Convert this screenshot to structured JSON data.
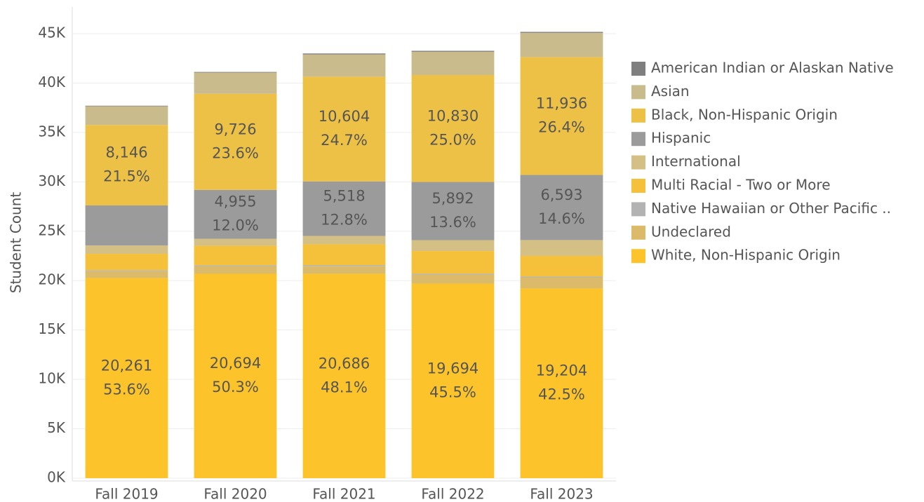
{
  "chart_data": {
    "type": "stacked_bar",
    "y_label": "Student Count",
    "categories": [
      "Fall 2019",
      "Fall 2020",
      "Fall 2021",
      "Fall 2022",
      "Fall 2023"
    ],
    "ylim": [
      0,
      47700
    ],
    "yticks": [
      {
        "value": 0,
        "label": "0K"
      },
      {
        "value": 5000,
        "label": "5K"
      },
      {
        "value": 10000,
        "label": "10K"
      },
      {
        "value": 15000,
        "label": "15K"
      },
      {
        "value": 20000,
        "label": "20K"
      },
      {
        "value": 25000,
        "label": "25K"
      },
      {
        "value": 30000,
        "label": "30K"
      },
      {
        "value": 35000,
        "label": "35K"
      },
      {
        "value": 40000,
        "label": "40K"
      },
      {
        "value": 45000,
        "label": "45K"
      }
    ],
    "grid": true,
    "legend": "right",
    "series": [
      {
        "name": "American Indian or Alaskan Native",
        "color": "#7f7f7f",
        "values": [
          50,
          60,
          100,
          100,
          100
        ]
      },
      {
        "name": "Asian",
        "color": "#c9bb8c",
        "values": [
          1900,
          2150,
          2250,
          2350,
          2450
        ]
      },
      {
        "name": "Black, Non-Hispanic Origin",
        "color": "#edc145",
        "values": [
          8146,
          9726,
          10604,
          10830,
          11936
        ],
        "value_labels": [
          "8,146",
          "9,726",
          "10,604",
          "10,830",
          "11,936"
        ],
        "percent_labels": [
          "21.5%",
          "23.6%",
          "24.7%",
          "25.0%",
          "26.4%"
        ]
      },
      {
        "name": "Hispanic",
        "color": "#9b9b9b",
        "values": [
          4050,
          4955,
          5518,
          5892,
          6593
        ],
        "value_labels": [
          null,
          "4,955",
          "5,518",
          "5,892",
          "6,593"
        ],
        "percent_labels": [
          null,
          "12.0%",
          "12.8%",
          "13.6%",
          "14.6%"
        ]
      },
      {
        "name": "International",
        "color": "#d4c084",
        "values": [
          850,
          710,
          850,
          1100,
          1600
        ]
      },
      {
        "name": "Multi Racial - Two or More",
        "color": "#f5c13a",
        "values": [
          1650,
          1960,
          2100,
          2300,
          2100
        ]
      },
      {
        "name": "Native Hawaiian or Other Pacific ..",
        "color": "#b3b3b3",
        "values": [
          100,
          90,
          90,
          100,
          100
        ]
      },
      {
        "name": "Undeclared",
        "color": "#dbbb6a",
        "values": [
          700,
          780,
          800,
          900,
          1100
        ]
      },
      {
        "name": "White, Non-Hispanic Origin",
        "color": "#fcc42a",
        "values": [
          20261,
          20694,
          20686,
          19694,
          19204
        ],
        "value_labels": [
          "20,261",
          "20,694",
          "20,686",
          "19,694",
          "19,204"
        ],
        "percent_labels": [
          "53.6%",
          "50.3%",
          "48.1%",
          "45.5%",
          "42.5%"
        ]
      }
    ]
  }
}
